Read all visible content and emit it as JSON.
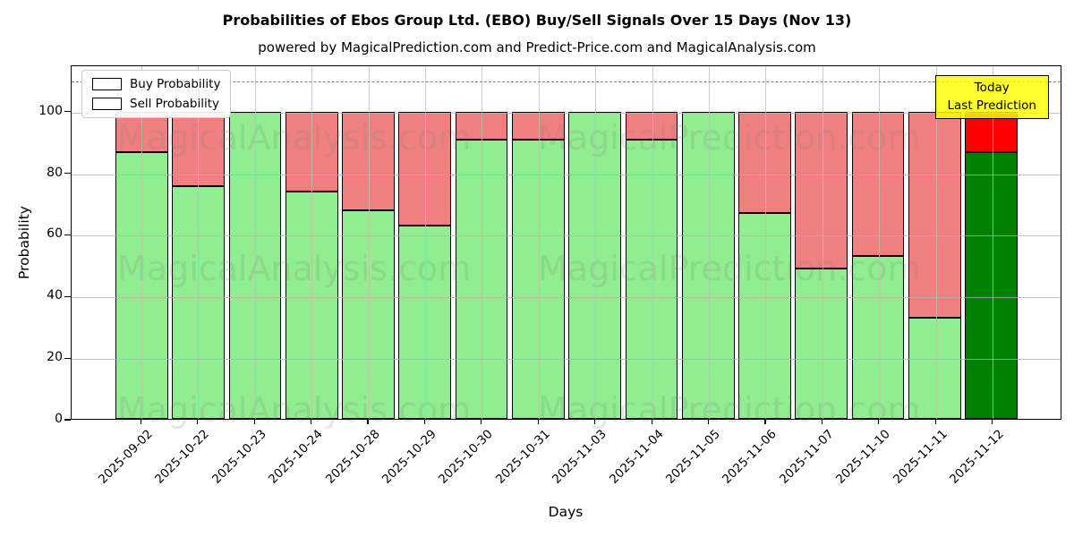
{
  "title": "Probabilities of Ebos Group Ltd. (EBO) Buy/Sell Signals Over 15 Days (Nov 13)",
  "subtitle": "powered by MagicalPrediction.com and Predict-Price.com and MagicalAnalysis.com",
  "axes": {
    "ylabel": "Probability",
    "xlabel": "Days",
    "yticks": [
      0,
      20,
      40,
      60,
      80,
      100
    ]
  },
  "legend": {
    "items": [
      {
        "label": "Buy Probability",
        "color": "#90ee90"
      },
      {
        "label": "Sell Probability",
        "color": "#f08080"
      }
    ]
  },
  "annotation": {
    "line1": "Today",
    "line2": "Last Prediction",
    "bg": "#ffff00"
  },
  "watermarks": {
    "left": "MagicalAnalysis.com",
    "right": "MagicalPrediction.com"
  },
  "colors": {
    "buy": "#90ee90",
    "sell": "#f08080",
    "today_buy": "#008000",
    "today_sell": "#ff0000",
    "edge": "#000000",
    "grid": "#b0b0b0",
    "dashed": "#7f7f7f",
    "annotation_bg": "#ffff00"
  },
  "chart_data": {
    "type": "bar",
    "stacked": true,
    "title": "Probabilities of Ebos Group Ltd. (EBO) Buy/Sell Signals Over 15 Days (Nov 13)",
    "xlabel": "Days",
    "ylabel": "Probability",
    "ylim": [
      0,
      115
    ],
    "grid": true,
    "legend_position": "upper left",
    "dashed_line_y": 110,
    "today_index": 15,
    "categories": [
      "2025-09-02",
      "2025-10-22",
      "2025-10-23",
      "2025-10-24",
      "2025-10-28",
      "2025-10-29",
      "2025-10-30",
      "2025-10-31",
      "2025-11-03",
      "2025-11-04",
      "2025-11-05",
      "2025-11-06",
      "2025-11-07",
      "2025-11-10",
      "2025-11-11",
      "2025-11-12"
    ],
    "series": [
      {
        "name": "Buy Probability",
        "values": [
          87,
          76,
          100,
          74,
          68,
          63,
          91,
          91,
          100,
          91,
          100,
          67,
          49,
          53,
          33,
          87
        ]
      },
      {
        "name": "Sell Probability",
        "values": [
          13,
          24,
          0,
          26,
          32,
          37,
          9,
          9,
          0,
          9,
          0,
          33,
          51,
          47,
          67,
          13
        ]
      }
    ]
  }
}
